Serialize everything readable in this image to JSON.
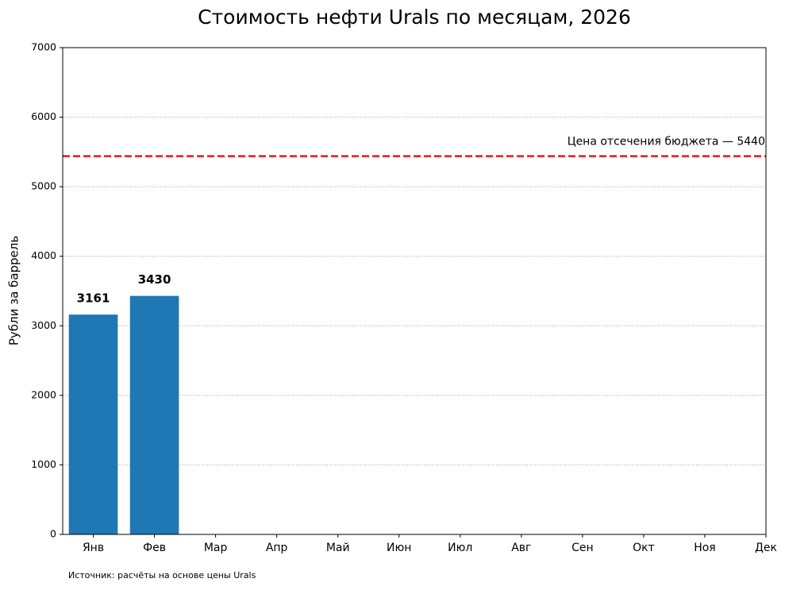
{
  "chart_data": {
    "type": "bar",
    "title": "Стоимость нефти Urals по месяцам, 2026",
    "y_label": "Рубли за баррель",
    "source": "Источник: расчёты на основе цены Urals",
    "categories": [
      "Янв",
      "Фев",
      "Мар",
      "Апр",
      "Май",
      "Июн",
      "Июл",
      "Авг",
      "Сен",
      "Окт",
      "Ноя",
      "Дек"
    ],
    "values": [
      3161,
      3430,
      null,
      null,
      null,
      null,
      null,
      null,
      null,
      null,
      null,
      null
    ],
    "color": "#1f77b4",
    "ylim": [
      0,
      7000
    ],
    "yticks": [
      0,
      1000,
      2000,
      3000,
      4000,
      5000,
      6000,
      7000
    ],
    "grid": true,
    "reference_line": {
      "value": 5440,
      "label": "Цена отсечения бюджета — 5440",
      "color": "#e41a1c"
    }
  }
}
